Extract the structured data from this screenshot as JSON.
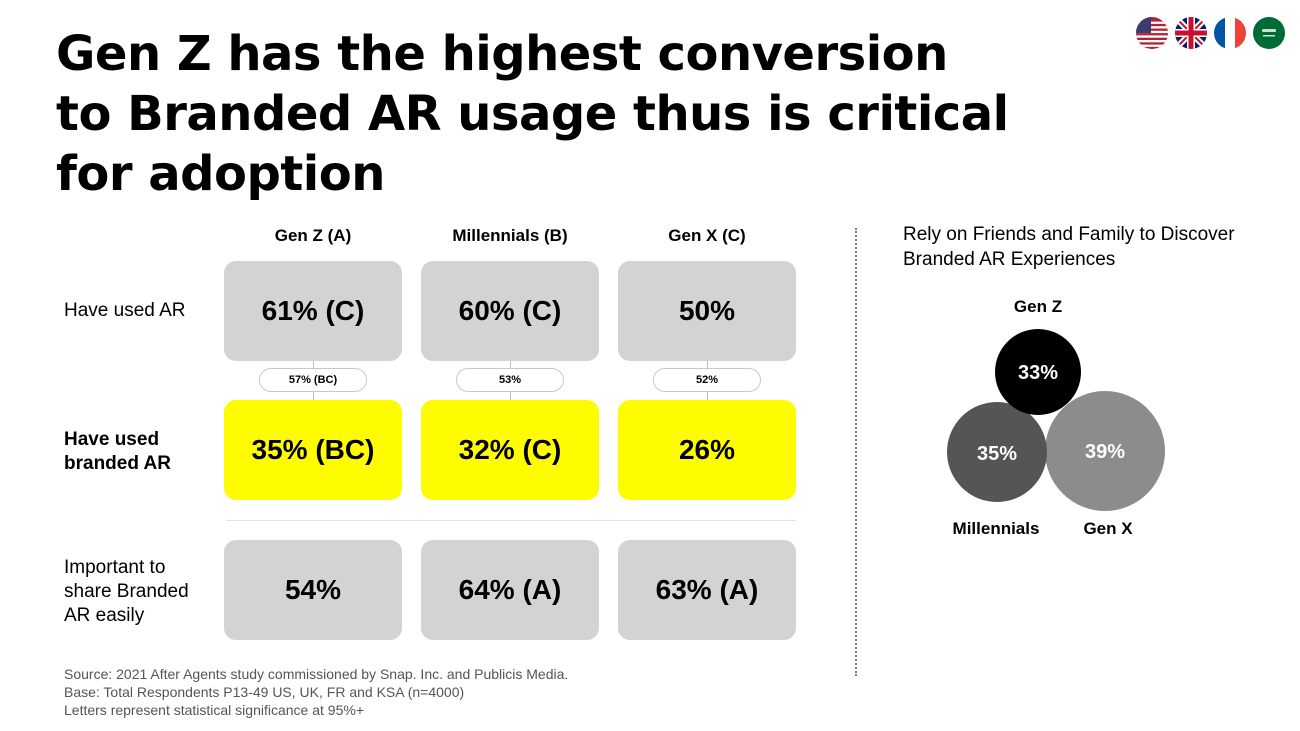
{
  "title": "Gen Z has the highest conversion to Branded  AR usage thus is critical for adoption",
  "flags": [
    "us-flag-icon",
    "uk-flag-icon",
    "france-flag-icon",
    "saudi-flag-icon"
  ],
  "colors": {
    "yellow": "#fffc00",
    "gray_cell": "#d3d3d3"
  },
  "chart_data": [
    {
      "type": "table",
      "columns": [
        "Gen Z (A)",
        "Millennials (B)",
        "Gen X (C)"
      ],
      "rows": [
        {
          "label": "Have used AR",
          "values": [
            "61% (C)",
            "60% (C)",
            "50%"
          ],
          "highlight": false
        },
        {
          "label": "Have used branded AR",
          "values": [
            "35% (BC)",
            "32% (C)",
            "26%"
          ],
          "highlight": true
        },
        {
          "label": "Important to share Branded AR easily",
          "values": [
            "54%",
            "64% (A)",
            "63% (A)"
          ],
          "highlight": false
        }
      ],
      "conversion": [
        "57% (BC)",
        "53%",
        "52%"
      ]
    },
    {
      "type": "bubble",
      "title": "Rely on Friends and Family to Discover Branded AR Experiences",
      "series": [
        {
          "name": "Gen Z",
          "value": 33,
          "label": "33%",
          "color": "#000000"
        },
        {
          "name": "Millennials",
          "value": 35,
          "label": "35%",
          "color": "#555555"
        },
        {
          "name": "Gen X",
          "value": 39,
          "label": "39%",
          "color": "#8c8c8c"
        }
      ]
    }
  ],
  "source": [
    "Source: 2021 After Agents study commissioned by Snap. Inc. and Publicis Media.",
    "Base: Total Respondents P13-49 US, UK, FR and KSA (n=4000)",
    "Letters represent statistical significance at 95%+"
  ]
}
